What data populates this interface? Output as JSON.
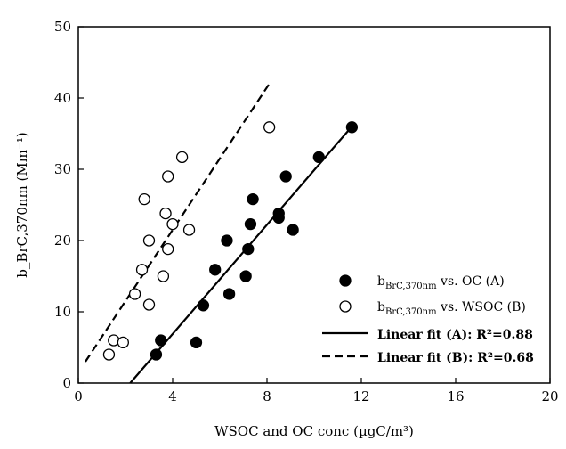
{
  "chart_data": {
    "type": "scatter",
    "xlabel": "WSOC and OC conc (µgC/m³)",
    "ylabel": "b_BrC,370nm (Mm⁻¹)",
    "xlim": [
      0,
      20
    ],
    "ylim": [
      0,
      50
    ],
    "x_ticks": [
      "0",
      "4",
      "8",
      "12",
      "16",
      "20"
    ],
    "y_ticks": [
      "0",
      "10",
      "20",
      "30",
      "40",
      "50"
    ],
    "legend_position": "bottom-right",
    "series": [
      {
        "name": "b_BrC,370nm vs. OC (A)",
        "marker": "filled-circle",
        "color": "#000000",
        "points": [
          [
            3.3,
            4.0
          ],
          [
            3.5,
            6.0
          ],
          [
            5.0,
            5.7
          ],
          [
            5.3,
            10.9
          ],
          [
            5.8,
            15.9
          ],
          [
            6.3,
            20.0
          ],
          [
            6.4,
            12.5
          ],
          [
            7.1,
            15.0
          ],
          [
            7.2,
            18.8
          ],
          [
            7.3,
            22.3
          ],
          [
            7.4,
            25.8
          ],
          [
            8.5,
            23.2
          ],
          [
            8.5,
            23.8
          ],
          [
            8.8,
            29.0
          ],
          [
            9.1,
            21.5
          ],
          [
            10.2,
            31.7
          ],
          [
            11.6,
            35.9
          ]
        ]
      },
      {
        "name": "b_BrC,370nm vs. WSOC (B)",
        "marker": "open-circle",
        "color": "#000000",
        "points": [
          [
            1.3,
            4.0
          ],
          [
            1.5,
            6.0
          ],
          [
            1.9,
            5.7
          ],
          [
            2.4,
            12.5
          ],
          [
            2.7,
            15.9
          ],
          [
            2.8,
            25.8
          ],
          [
            3.0,
            11.0
          ],
          [
            3.0,
            20.0
          ],
          [
            3.6,
            15.0
          ],
          [
            3.7,
            23.8
          ],
          [
            3.8,
            29.0
          ],
          [
            3.8,
            18.8
          ],
          [
            4.0,
            22.3
          ],
          [
            4.4,
            31.7
          ],
          [
            4.7,
            21.5
          ],
          [
            8.1,
            35.9
          ]
        ]
      }
    ],
    "fits": [
      {
        "name": "Linear fit (A): R²=0.88",
        "dash": "solid",
        "x": [
          2.2,
          11.6
        ],
        "y": [
          0,
          36.0
        ]
      },
      {
        "name": "Linear fit (B): R²=0.68",
        "dash": "dashed",
        "x": [
          0.3,
          8.1
        ],
        "y": [
          3.0,
          42.0
        ]
      }
    ]
  }
}
